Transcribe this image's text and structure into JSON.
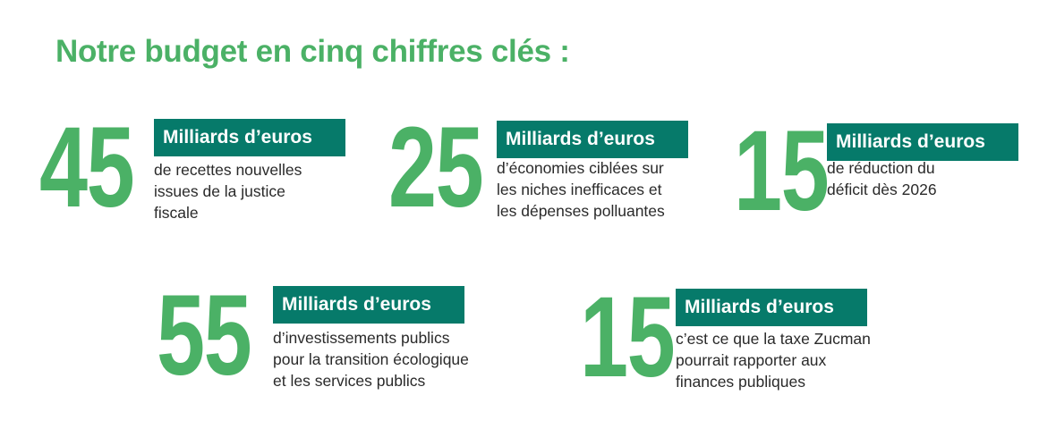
{
  "title": "Notre budget en cinq chiffres clés :",
  "colors": {
    "green": "#4bb166",
    "teal": "#067a6a",
    "text": "#2a2a2a"
  },
  "figures": [
    {
      "number": "45",
      "unit": "Milliards d’euros",
      "description": "de recettes nouvelles\nissues de la justice\nfiscale"
    },
    {
      "number": "25",
      "unit": "Milliards d’euros",
      "description": "d’économies ciblées sur\nles niches inefficaces et\nles dépenses polluantes"
    },
    {
      "number": "15",
      "unit": "Milliards d’euros",
      "description": "de réduction du\ndéficit dès 2026"
    },
    {
      "number": "55",
      "unit": "Milliards d’euros",
      "description": "d’investissements publics\npour la transition écologique\net les services publics"
    },
    {
      "number": "15",
      "unit": "Milliards d’euros",
      "description": "c’est ce que la taxe Zucman\npourrait rapporter aux\nfinances publiques"
    }
  ]
}
